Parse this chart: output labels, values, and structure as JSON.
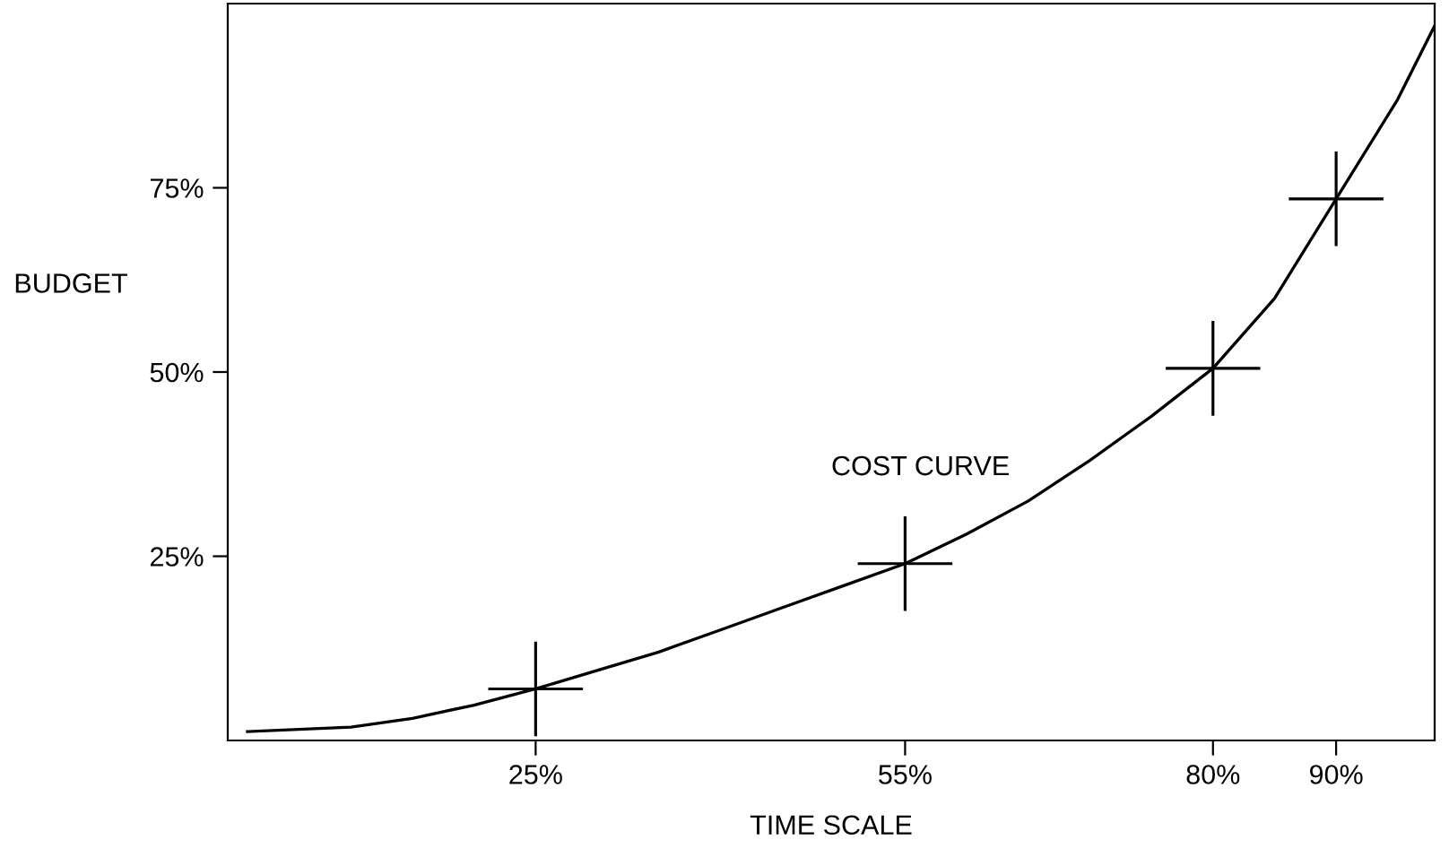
{
  "chart_data": {
    "type": "line",
    "xlabel": "TIME SCALE",
    "ylabel": "BUDGET",
    "xlim": [
      0,
      98
    ],
    "ylim": [
      0,
      100
    ],
    "xticks": [
      {
        "value": 25,
        "label": "25%"
      },
      {
        "value": 55,
        "label": "55%"
      },
      {
        "value": 80,
        "label": "80%"
      },
      {
        "value": 90,
        "label": "90%"
      }
    ],
    "yticks": [
      {
        "value": 25,
        "label": "25%"
      },
      {
        "value": 50,
        "label": "50%"
      },
      {
        "value": 75,
        "label": "75%"
      }
    ],
    "grid": false,
    "legend": false,
    "series": [
      {
        "color": "#000000",
        "marker": "none",
        "line_style": "solid",
        "x": [
          1.6,
          10,
          15,
          20,
          25,
          30,
          35,
          40,
          45,
          50,
          55,
          60,
          65,
          70,
          75,
          80,
          85,
          90,
          95,
          98
        ],
        "values": [
          1.2,
          1.8,
          3,
          4.8,
          7,
          9.5,
          12,
          15,
          18,
          21,
          24,
          28,
          32.5,
          38,
          44,
          50.5,
          60,
          73.5,
          87,
          97
        ]
      },
      {
        "type": "scatter",
        "color": "#000000",
        "marker": "cross",
        "x": [
          25,
          55,
          80,
          90
        ],
        "values": [
          7,
          24,
          50.5,
          73.5
        ]
      }
    ],
    "annotations": [
      "COST CURVE"
    ]
  }
}
